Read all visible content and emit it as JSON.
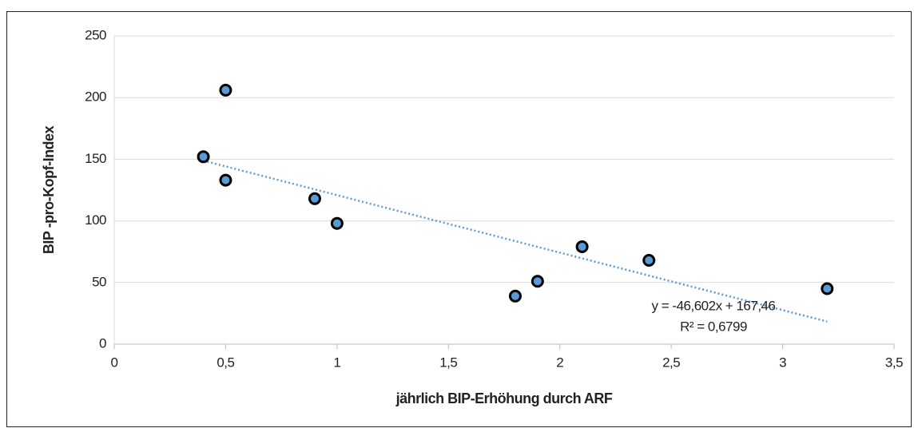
{
  "chart_data": {
    "type": "scatter",
    "x_label": "jährlich BIP-Erhöhung durch ARF",
    "y_label": "BIP -pro-Kopf-Index",
    "series": [
      {
        "name": "BIP-pro-Kopf-Index",
        "color": "#5b9bd5",
        "x": [
          0.4,
          0.5,
          0.5,
          0.9,
          1.0,
          1.8,
          1.9,
          2.1,
          2.4,
          3.2
        ],
        "values": [
          152,
          206,
          133,
          118,
          98,
          39,
          51,
          79,
          68,
          45
        ]
      }
    ],
    "trendline": {
      "slope": -46.602,
      "intercept": 167.46,
      "color": "#5b9bd5",
      "equation": "y = -46,602x + 167,46",
      "r_squared": "R² = 0,6799"
    },
    "xlim": [
      0,
      3.5
    ],
    "xticks": [
      0,
      {
        "value": 0.5,
        "label": "0,5"
      },
      1,
      {
        "value": 1.5,
        "label": "1,5"
      },
      2,
      {
        "value": 2.5,
        "label": "2,5"
      },
      3,
      {
        "value": 3.5,
        "label": "3,5"
      }
    ],
    "ylim": [
      0,
      250
    ],
    "yticks": [
      0,
      50,
      100,
      150,
      200,
      250
    ],
    "grid": true
  }
}
